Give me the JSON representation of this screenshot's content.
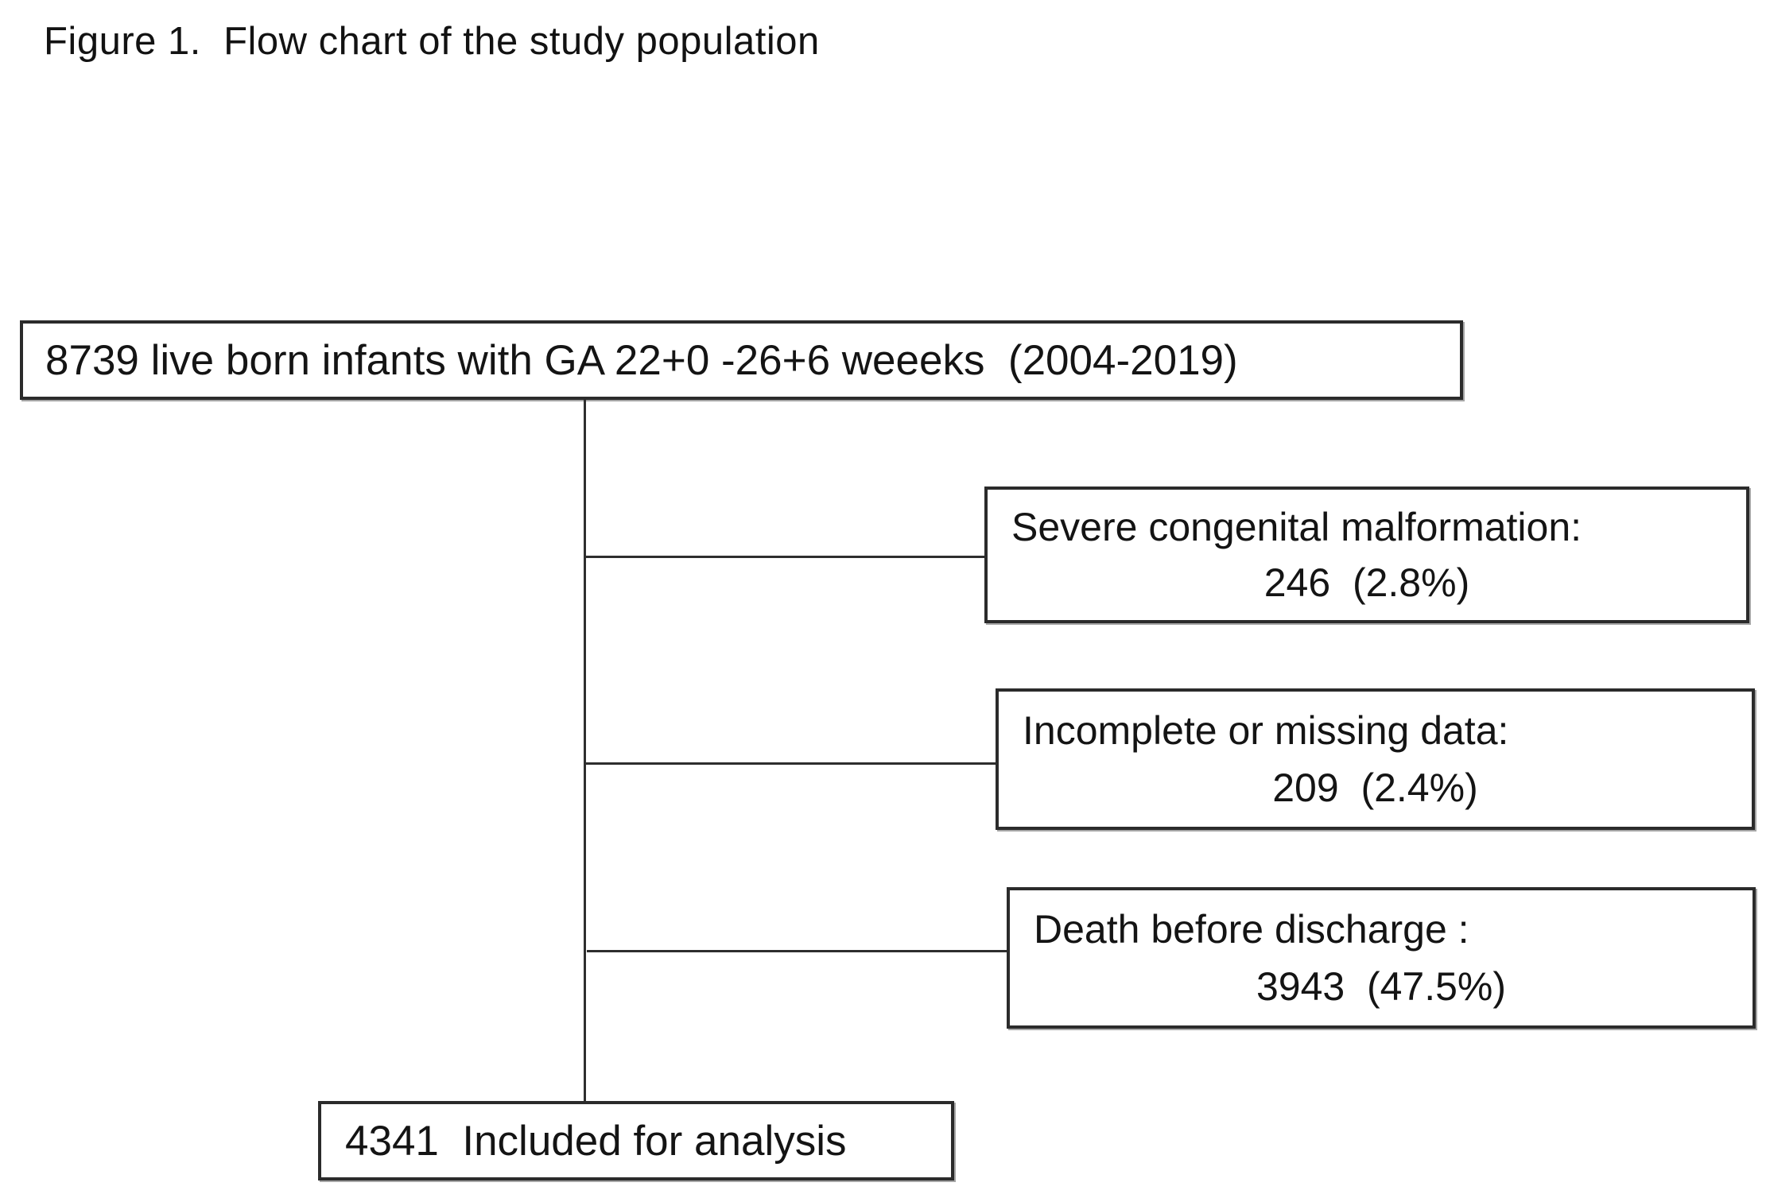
{
  "figure": {
    "title": "Figure 1.  Flow chart of the study population",
    "flow": {
      "source": {
        "text": "8739 live born infants with GA 22+0 -26+6 weeeks  (2004-2019)"
      },
      "exclusions": [
        {
          "label": "Severe congenital malformation:",
          "value": "246  (2.8%)"
        },
        {
          "label": "Incomplete or missing data:",
          "value": "209  (2.4%)"
        },
        {
          "label": "Death before discharge :",
          "value": "3943  (47.5%)"
        }
      ],
      "result": {
        "text": "4341  Included for analysis"
      }
    }
  }
}
